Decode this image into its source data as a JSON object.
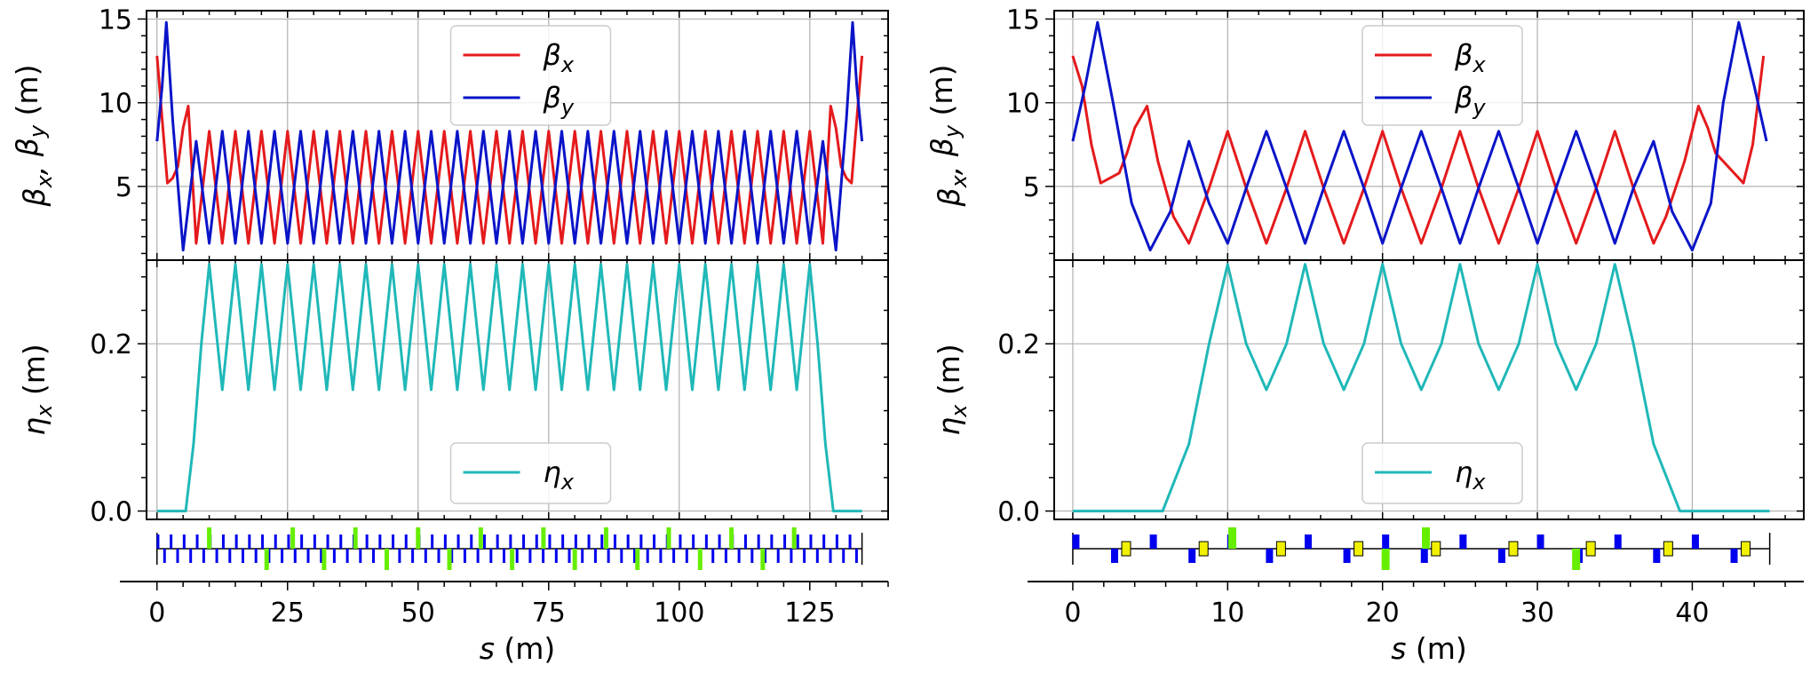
{
  "chart_data": [
    {
      "id": "left",
      "type": "line",
      "title": "",
      "xlabel": "s (m)",
      "xlim": [
        -2,
        140
      ],
      "xticks": [
        0,
        25,
        50,
        75,
        100,
        125
      ],
      "xtick_labels": [
        "0",
        "25",
        "50",
        "75",
        "100",
        "125"
      ],
      "beta_panel": {
        "ylabel": "βx, βy (m)",
        "ylim": [
          0.6,
          15.5
        ],
        "yticks": [
          5,
          10,
          15
        ],
        "ytick_labels": [
          "5",
          "10",
          "15"
        ],
        "legend": {
          "position": "upper center",
          "entries": [
            "β_x",
            "β_y"
          ]
        },
        "series": [
          {
            "name": "βx",
            "color": "#e41a1c",
            "x": [
              0,
              1,
              2,
              3,
              4,
              5,
              6,
              7.5,
              10,
              12.5,
              15,
              17.5,
              20,
              22.5,
              25,
              27.5,
              30,
              32.5,
              35,
              37.5,
              40,
              42.5,
              45,
              47.5,
              50,
              52.5,
              55,
              57.5,
              60,
              62.5,
              65,
              67.5,
              70,
              72.5,
              75,
              77.5,
              80,
              82.5,
              85,
              87.5,
              90,
              92.5,
              95,
              97.5,
              100,
              102.5,
              105,
              107.5,
              110,
              112.5,
              115,
              117.5,
              120,
              122.5,
              125,
              127.5,
              129,
              130,
              131,
              132,
              133,
              134,
              135
            ],
            "y": [
              12.8,
              9,
              5.2,
              5.5,
              6.2,
              8.5,
              9.8,
              1.6,
              8.3,
              1.6,
              8.3,
              1.6,
              8.3,
              1.6,
              8.3,
              1.6,
              8.3,
              1.6,
              8.3,
              1.6,
              8.3,
              1.6,
              8.3,
              1.6,
              8.3,
              1.6,
              8.3,
              1.6,
              8.3,
              1.6,
              8.3,
              1.6,
              8.3,
              1.6,
              8.3,
              1.6,
              8.3,
              1.6,
              8.3,
              1.6,
              8.3,
              1.6,
              8.3,
              1.6,
              8.3,
              1.6,
              8.3,
              1.6,
              8.3,
              1.6,
              8.3,
              1.6,
              8.3,
              1.6,
              8.3,
              1.6,
              9.8,
              8.5,
              6.2,
              5.5,
              5.2,
              9,
              12.8
            ]
          },
          {
            "name": "βy",
            "color": "#0a14c8",
            "x": [
              0,
              1,
              1.8,
              3,
              5,
              7.5,
              10,
              12.5,
              15,
              17.5,
              20,
              22.5,
              25,
              27.5,
              30,
              32.5,
              35,
              37.5,
              40,
              42.5,
              45,
              47.5,
              50,
              52.5,
              55,
              57.5,
              60,
              62.5,
              65,
              67.5,
              70,
              72.5,
              75,
              77.5,
              80,
              82.5,
              85,
              87.5,
              90,
              92.5,
              95,
              97.5,
              100,
              102.5,
              105,
              107.5,
              110,
              112.5,
              115,
              117.5,
              120,
              122.5,
              125,
              127.5,
              130,
              132,
              133.2,
              134,
              135
            ],
            "y": [
              7.7,
              11,
              14.8,
              9,
              1.2,
              7.7,
              1.6,
              8.3,
              1.6,
              8.3,
              1.6,
              8.3,
              1.6,
              8.3,
              1.6,
              8.3,
              1.6,
              8.3,
              1.6,
              8.3,
              1.6,
              8.3,
              1.6,
              8.3,
              1.6,
              8.3,
              1.6,
              8.3,
              1.6,
              8.3,
              1.6,
              8.3,
              1.6,
              8.3,
              1.6,
              8.3,
              1.6,
              8.3,
              1.6,
              8.3,
              1.6,
              8.3,
              1.6,
              8.3,
              1.6,
              8.3,
              1.6,
              8.3,
              1.6,
              8.3,
              1.6,
              8.3,
              1.6,
              7.7,
              1.2,
              9,
              14.8,
              11,
              7.7
            ]
          }
        ]
      },
      "eta_panel": {
        "ylabel": "ηx (m)",
        "ylim": [
          -0.01,
          0.3
        ],
        "yticks": [
          0.0,
          0.2
        ],
        "ytick_labels": [
          "0.0",
          "0.2"
        ],
        "legend": {
          "position": "lower center",
          "entries": [
            "η_x"
          ]
        },
        "series": [
          {
            "name": "ηx",
            "color": "#20b8b8",
            "x": [
              0,
              5.5,
              7,
              8.5,
              10,
              12.5,
              15,
              17.5,
              20,
              22.5,
              25,
              27.5,
              30,
              32.5,
              35,
              37.5,
              40,
              42.5,
              45,
              47.5,
              50,
              52.5,
              55,
              57.5,
              60,
              62.5,
              65,
              67.5,
              70,
              72.5,
              75,
              77.5,
              80,
              82.5,
              85,
              87.5,
              90,
              92.5,
              95,
              97.5,
              100,
              102.5,
              105,
              107.5,
              110,
              112.5,
              115,
              117.5,
              120,
              122.5,
              125,
              126.5,
              128,
              129.5,
              135
            ],
            "y": [
              0,
              0,
              0.08,
              0.2,
              0.295,
              0.145,
              0.295,
              0.145,
              0.295,
              0.145,
              0.295,
              0.145,
              0.295,
              0.145,
              0.295,
              0.145,
              0.295,
              0.145,
              0.295,
              0.145,
              0.295,
              0.145,
              0.295,
              0.145,
              0.295,
              0.145,
              0.295,
              0.145,
              0.295,
              0.145,
              0.295,
              0.145,
              0.295,
              0.145,
              0.295,
              0.145,
              0.295,
              0.145,
              0.295,
              0.145,
              0.295,
              0.145,
              0.295,
              0.145,
              0.295,
              0.145,
              0.295,
              0.145,
              0.295,
              0.145,
              0.295,
              0.2,
              0.08,
              0,
              0
            ]
          }
        ]
      }
    },
    {
      "id": "right",
      "type": "line",
      "title": "",
      "xlabel": "s (m)",
      "xlim": [
        -1.2,
        47.2
      ],
      "xticks": [
        0,
        10,
        20,
        30,
        40
      ],
      "xtick_labels": [
        "0",
        "10",
        "20",
        "30",
        "40"
      ],
      "beta_panel": {
        "ylabel": "βx, βy (m)",
        "ylim": [
          0.6,
          15.5
        ],
        "yticks": [
          5,
          10,
          15
        ],
        "ytick_labels": [
          "5",
          "10",
          "15"
        ],
        "legend": {
          "position": "upper center",
          "entries": [
            "β_x",
            "β_y"
          ]
        },
        "series": [
          {
            "name": "βx",
            "color": "#e41a1c",
            "x": [
              0,
              0.6,
              1.2,
              1.8,
              3,
              3.5,
              4,
              4.8,
              5.5,
              6.5,
              7.5,
              8.8,
              10,
              11.2,
              12.5,
              13.8,
              15,
              16.2,
              17.5,
              18.8,
              20,
              21.2,
              22.5,
              23.8,
              25,
              26.2,
              27.5,
              28.8,
              30,
              31.2,
              32.5,
              33.8,
              35,
              36.2,
              37.5,
              38.3,
              39.5,
              40.4,
              41,
              41.5,
              42.7,
              43.3,
              43.9,
              44.6
            ],
            "y": [
              12.8,
              11,
              7.5,
              5.2,
              5.8,
              7,
              8.5,
              9.8,
              6.5,
              3.2,
              1.6,
              4.9,
              8.3,
              4.9,
              1.6,
              4.9,
              8.3,
              4.9,
              1.6,
              4.9,
              8.3,
              4.9,
              1.6,
              4.9,
              8.3,
              4.9,
              1.6,
              4.9,
              8.3,
              4.9,
              1.6,
              4.9,
              8.3,
              4.9,
              1.6,
              3.2,
              6.5,
              9.8,
              8.5,
              7,
              5.8,
              5.2,
              7.5,
              12.8
            ]
          },
          {
            "name": "βy",
            "color": "#0a14c8",
            "x": [
              0,
              0.8,
              1.6,
              2.6,
              3.8,
              5,
              6.3,
              7.5,
              8.8,
              10,
              11.2,
              12.5,
              13.8,
              15,
              16.2,
              17.5,
              18.8,
              20,
              21.2,
              22.5,
              23.8,
              25,
              26.2,
              27.5,
              28.8,
              30,
              31.2,
              32.5,
              33.8,
              35,
              36.2,
              37.5,
              38.7,
              40,
              41.2,
              42,
              43,
              44,
              44.8
            ],
            "y": [
              7.7,
              11,
              14.8,
              10,
              4,
              1.2,
              3.5,
              7.7,
              4,
              1.6,
              4.9,
              8.3,
              4.9,
              1.6,
              4.9,
              8.3,
              4.9,
              1.6,
              4.9,
              8.3,
              4.9,
              1.6,
              4.9,
              8.3,
              4.9,
              1.6,
              4.9,
              8.3,
              4.9,
              1.6,
              4.9,
              7.7,
              3.5,
              1.2,
              4,
              10,
              14.8,
              11,
              7.7
            ]
          }
        ]
      },
      "eta_panel": {
        "ylabel": "ηx (m)",
        "ylim": [
          -0.01,
          0.3
        ],
        "yticks": [
          0.0,
          0.2
        ],
        "ytick_labels": [
          "0.0",
          "0.2"
        ],
        "legend": {
          "position": "lower center",
          "entries": [
            "η_x"
          ]
        },
        "series": [
          {
            "name": "ηx",
            "color": "#20b8b8",
            "x": [
              0,
              5.8,
              7.5,
              8.8,
              10,
              11.2,
              12.5,
              13.8,
              15,
              16.2,
              17.5,
              18.8,
              20,
              21.2,
              22.5,
              23.8,
              25,
              26.2,
              27.5,
              28.8,
              30,
              31.2,
              32.5,
              33.8,
              35,
              36.2,
              37.5,
              39.2,
              45
            ],
            "y": [
              0,
              0,
              0.08,
              0.2,
              0.295,
              0.2,
              0.145,
              0.2,
              0.295,
              0.2,
              0.145,
              0.2,
              0.295,
              0.2,
              0.145,
              0.2,
              0.295,
              0.2,
              0.145,
              0.2,
              0.295,
              0.2,
              0.145,
              0.2,
              0.295,
              0.2,
              0.08,
              0,
              0
            ]
          }
        ]
      }
    }
  ],
  "lattice": {
    "left_period": 5,
    "right_period": 5,
    "colors": {
      "quad": "#0000ee",
      "sext": "#66ee00",
      "bend": "#f0f000",
      "line": "#000000"
    }
  }
}
